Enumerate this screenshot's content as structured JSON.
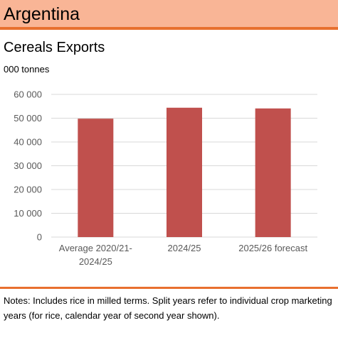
{
  "header": {
    "title": "Argentina"
  },
  "subtitle": "Cereals Exports",
  "unit_label": "000 tonnes",
  "notes": "Notes: Includes rice in milled terms. Split years refer to individual crop marketing years (for rice, calendar  year of second year shown).",
  "colors": {
    "header_bg": "#f9b596",
    "accent": "#e8702f",
    "bar": "#c0504d",
    "grid": "#d9d9d9"
  },
  "chart_data": {
    "type": "bar",
    "title": "Cereals Exports",
    "ylabel": "000 tonnes",
    "xlabel": "",
    "categories": [
      [
        "Average 2020/21-",
        "2024/25"
      ],
      [
        "2024/25"
      ],
      [
        "2025/26 forecast"
      ]
    ],
    "values": [
      49800,
      54400,
      54100
    ],
    "ylim": [
      0,
      60000
    ],
    "yticks": [
      0,
      10000,
      20000,
      30000,
      40000,
      50000,
      60000
    ],
    "ytick_labels": [
      "0",
      "10 000",
      "20 000",
      "30 000",
      "40 000",
      "50 000",
      "60 000"
    ],
    "grid": true,
    "legend": "none"
  }
}
